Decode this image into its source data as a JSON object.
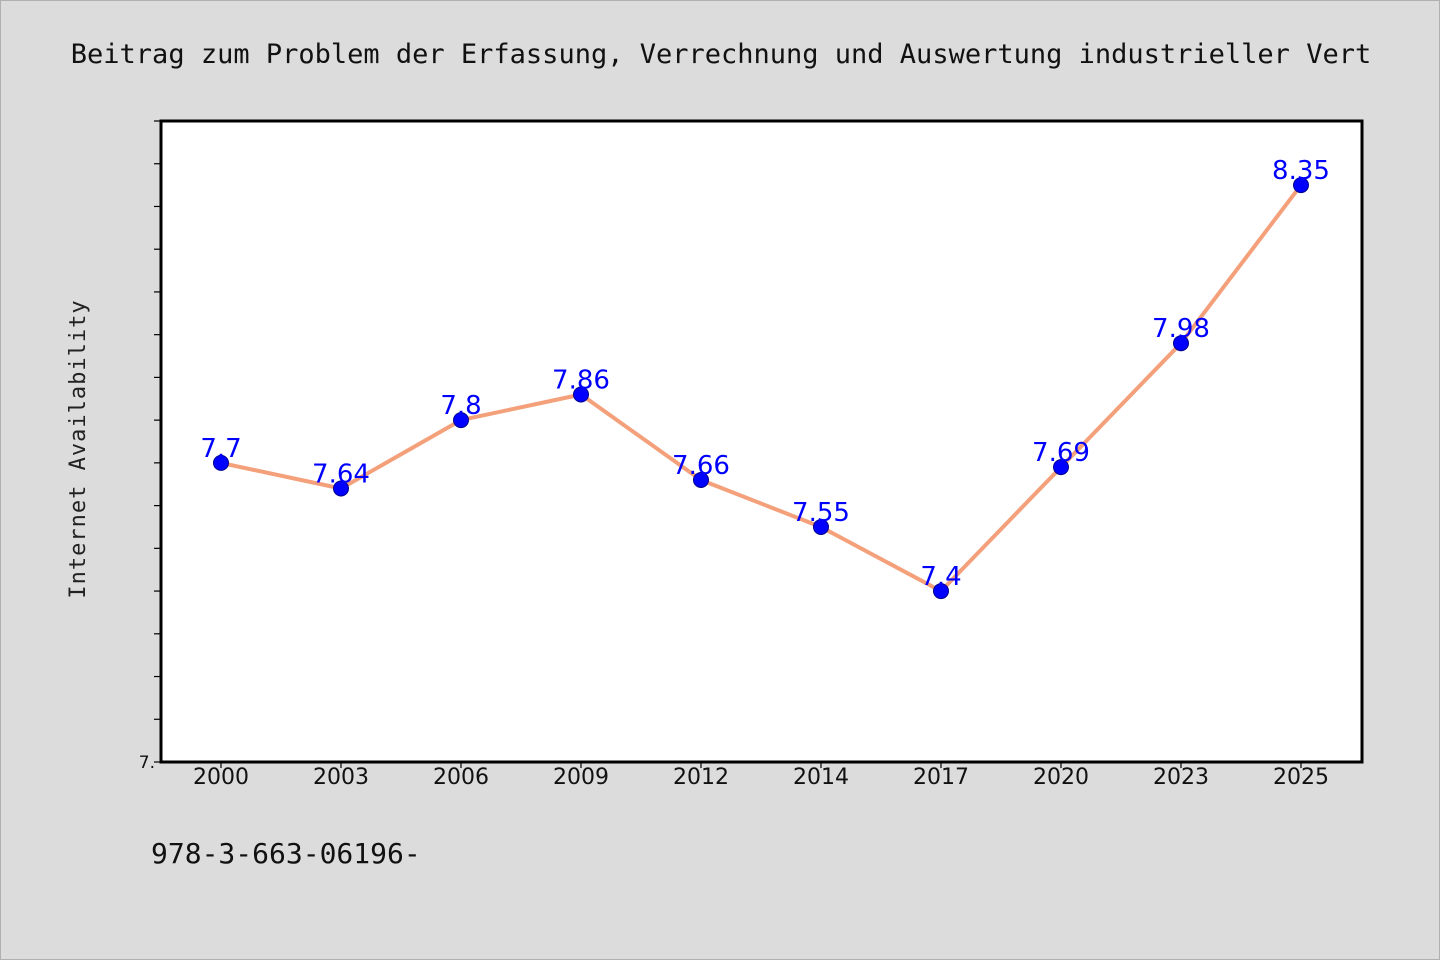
{
  "chart_data": {
    "type": "line",
    "title": "Beitrag zum Problem der Erfassung, Verrechnung und Auswertung industrieller Vert",
    "xlabel": "",
    "ylabel": "Internet Availability",
    "categories": [
      "2000",
      "2003",
      "2006",
      "2009",
      "2012",
      "2014",
      "2017",
      "2020",
      "2023",
      "2025"
    ],
    "series": [
      {
        "values": [
          7.7,
          7.64,
          7.8,
          7.86,
          7.66,
          7.55,
          7.4,
          7.69,
          7.98,
          8.35
        ],
        "data_labels": [
          "7.7",
          "7.64",
          "7.8",
          "7.86",
          "7.66",
          "7.55",
          "7.4",
          "7.69",
          "7.98",
          "8.35"
        ]
      }
    ],
    "ylim": [
      7.0,
      8.5
    ],
    "ytick_labels": [
      "7."
    ],
    "grid": false,
    "legend": "none",
    "colors": {
      "line": "#f4a07a",
      "marker": "#0000ff",
      "data_label": "#0000ff",
      "plot_background": "#ffffff",
      "page_background": "#dcdcdc"
    }
  },
  "footer": {
    "text": "978-3-663-06196-"
  }
}
